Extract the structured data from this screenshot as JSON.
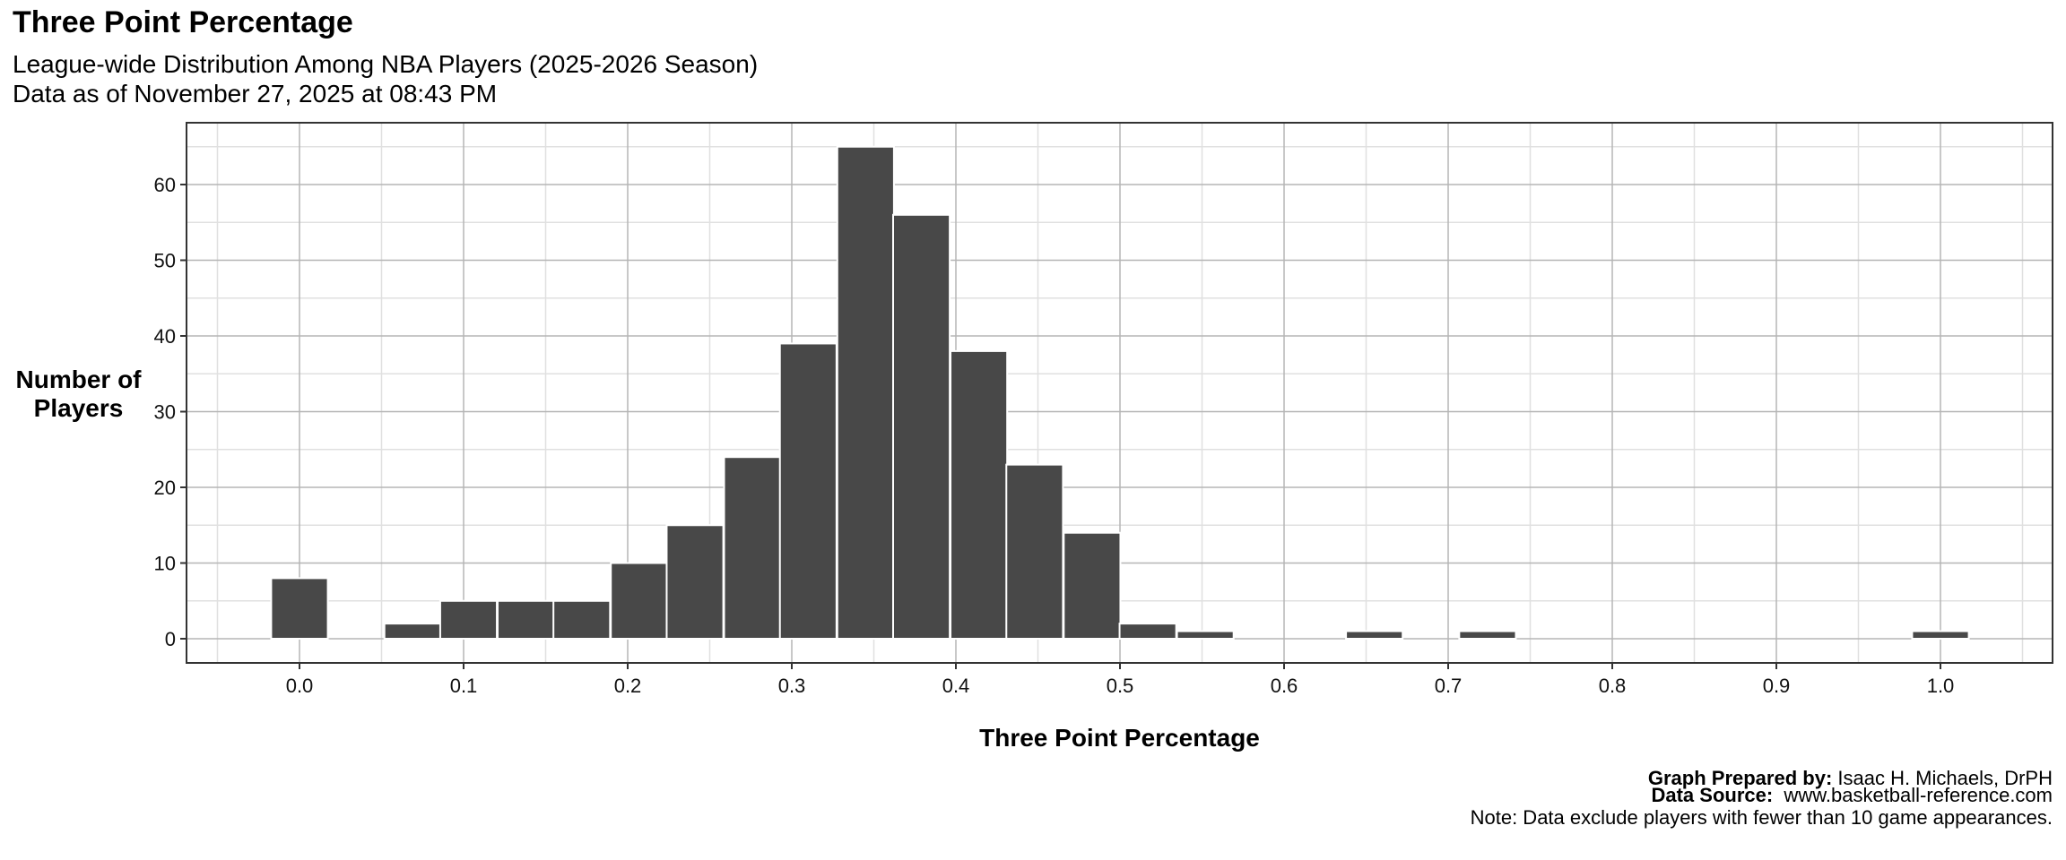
{
  "header": {
    "title": "Three Point Percentage",
    "subtitle_line1": "League-wide Distribution Among NBA Players (2025-2026 Season)",
    "subtitle_line2": "Data as of November 27, 2025 at 08:43 PM"
  },
  "axes": {
    "ylabel_line1": "Number of",
    "ylabel_line2": "Players",
    "xlabel": "Three Point Percentage",
    "yticks": [
      "0",
      "10",
      "20",
      "30",
      "40",
      "50",
      "60"
    ],
    "xticks": [
      "0.0",
      "0.1",
      "0.2",
      "0.3",
      "0.4",
      "0.5",
      "0.6",
      "0.7",
      "0.8",
      "0.9",
      "1.0"
    ]
  },
  "footer": {
    "prepared_label": "Graph Prepared by:",
    "prepared_value": " Isaac H. Michaels, DrPH",
    "source_label": "Data Source:",
    "source_value": "  www.basketball-reference.com",
    "note": "Note: Data exclude players with fewer than 10 game appearances."
  },
  "colors": {
    "bar_fill": "#484848",
    "bar_outline": "#ffffff",
    "grid_major": "#b5b5b5",
    "grid_minor": "#e0e0e0",
    "panel_border": "#333333"
  },
  "chart_data": {
    "type": "bar",
    "title": "Three Point Percentage",
    "subtitle": "League-wide Distribution Among NBA Players (2025-2026 Season)",
    "xlabel": "Three Point Percentage",
    "ylabel": "Number of Players",
    "xlim": [
      -0.065,
      1.06
    ],
    "ylim": [
      -3.25,
      68.25
    ],
    "grid": true,
    "bin_width": 0.0345,
    "x": [
      0.0,
      0.069,
      0.103,
      0.138,
      0.172,
      0.207,
      0.241,
      0.276,
      0.31,
      0.345,
      0.379,
      0.414,
      0.448,
      0.483,
      0.517,
      0.552,
      0.655,
      0.724,
      1.0
    ],
    "values": [
      8,
      2,
      5,
      5,
      5,
      10,
      15,
      24,
      39,
      65,
      56,
      38,
      23,
      14,
      2,
      1,
      1,
      1,
      1
    ]
  }
}
